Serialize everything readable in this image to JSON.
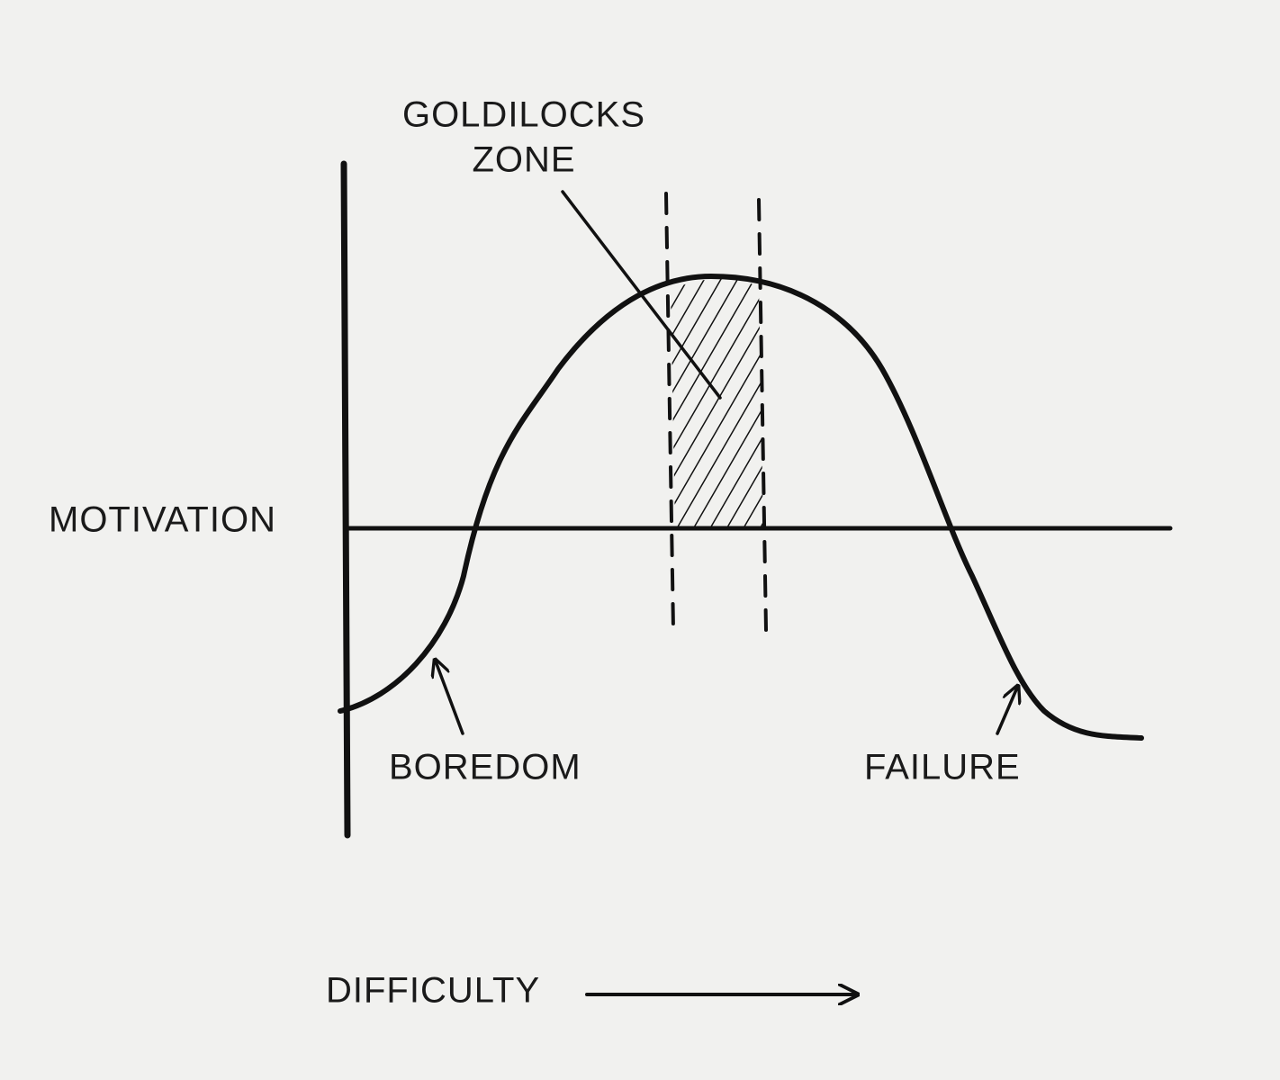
{
  "annotations": {
    "goldilocks_zone": [
      "GOLDILOCKS",
      "ZONE"
    ],
    "boredom": "BOREDOM",
    "failure": "FAILURE"
  },
  "axes": {
    "y_label": "MOTIVATION",
    "x_label": "DIFFICULTY"
  }
}
